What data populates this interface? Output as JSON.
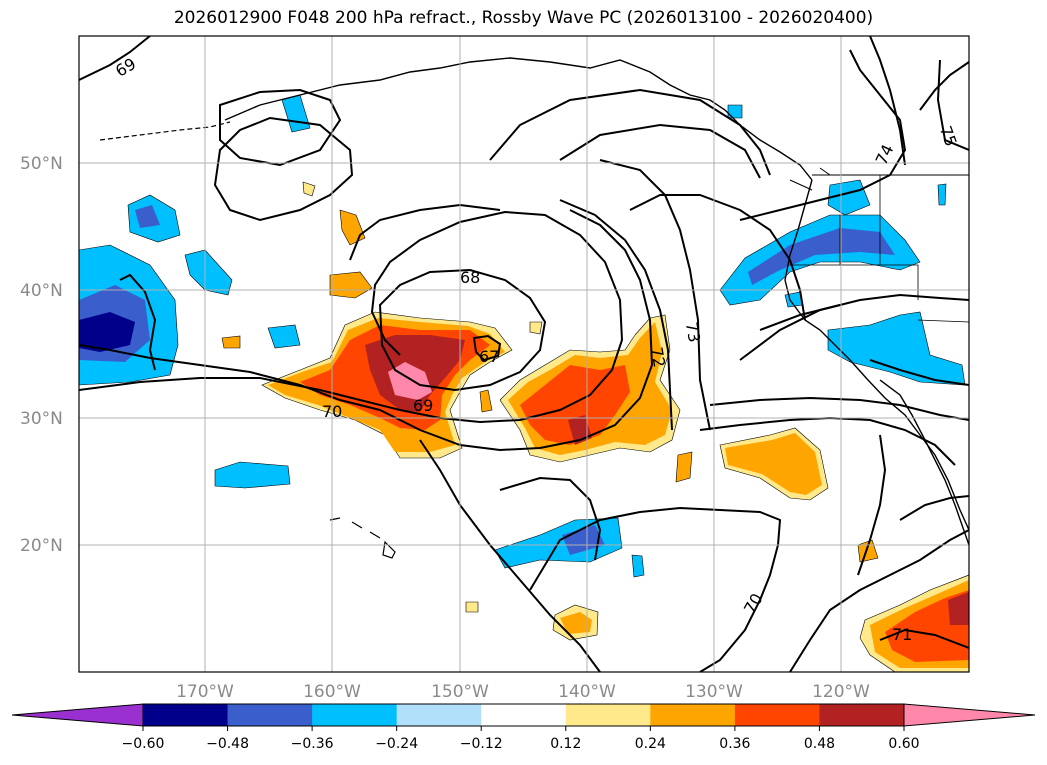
{
  "title": "2026012900 F048 200 hPa refract., Rossby Wave PC (2026013100 - 2026020400)",
  "map": {
    "lon_range": [
      -180,
      -110
    ],
    "lat_range": [
      10,
      60
    ],
    "lat_labels": [
      "50°N",
      "40°N",
      "30°N",
      "20°N"
    ],
    "lon_labels": [
      "170°W",
      "160°W",
      "150°W",
      "140°W",
      "130°W",
      "120°W"
    ],
    "contour_labels": [
      "69",
      "68",
      "67",
      "69",
      "70",
      "72",
      "73",
      "74",
      "75",
      "70",
      "71"
    ]
  },
  "colorbar": {
    "tick_labels": [
      "−0.60",
      "−0.48",
      "−0.36",
      "−0.24",
      "−0.12",
      "0.12",
      "0.24",
      "0.36",
      "0.48",
      "0.60"
    ],
    "colors": [
      "#9b30d0",
      "#00008b",
      "#3a5fcd",
      "#00bfff",
      "#b0e0fa",
      "#ffffff",
      "#ffe98a",
      "#ffa500",
      "#ff4500",
      "#b22222",
      "#ff88aa"
    ]
  }
}
